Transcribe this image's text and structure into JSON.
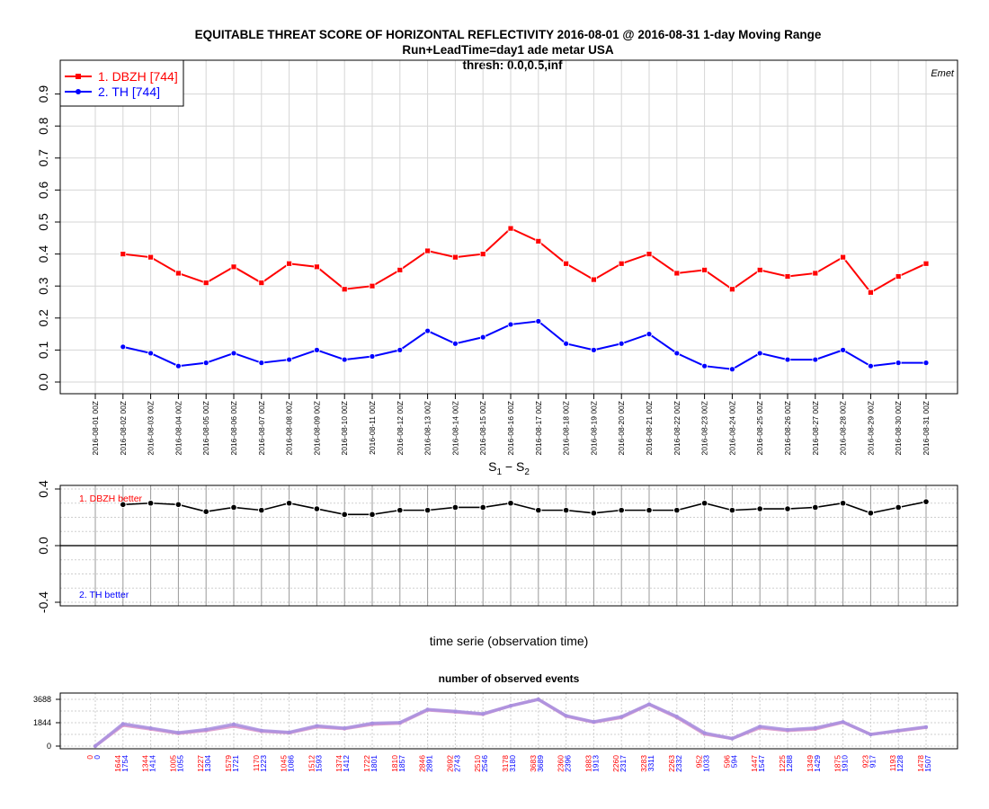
{
  "title": {
    "line1": "EQUITABLE THREAT SCORE OF HORIZONTAL REFLECTIVITY 2016-08-01 @ 2016-08-31 1-day Moving Range",
    "line2": "Run+LeadTime=day1 ade metar USA",
    "line3": "thresh: 0.0,0.5,inf",
    "corner": "Emet"
  },
  "colors": {
    "s1": "#ff0000",
    "s2": "#0000ff",
    "diff": "#000000",
    "events": "#bb88dd"
  },
  "chart_data": [
    {
      "type": "line",
      "x": [
        "2016-08-01 00Z",
        "2016-08-02 00Z",
        "2016-08-03 00Z",
        "2016-08-04 00Z",
        "2016-08-05 00Z",
        "2016-08-06 00Z",
        "2016-08-07 00Z",
        "2016-08-08 00Z",
        "2016-08-09 00Z",
        "2016-08-10 00Z",
        "2016-08-11 00Z",
        "2016-08-12 00Z",
        "2016-08-13 00Z",
        "2016-08-14 00Z",
        "2016-08-15 00Z",
        "2016-08-16 00Z",
        "2016-08-17 00Z",
        "2016-08-18 00Z",
        "2016-08-19 00Z",
        "2016-08-20 00Z",
        "2016-08-21 00Z",
        "2016-08-22 00Z",
        "2016-08-23 00Z",
        "2016-08-24 00Z",
        "2016-08-25 00Z",
        "2016-08-26 00Z",
        "2016-08-27 00Z",
        "2016-08-28 00Z",
        "2016-08-29 00Z",
        "2016-08-30 00Z",
        "2016-08-31 00Z"
      ],
      "series": [
        {
          "name": "1. DBZH [744]",
          "values": [
            null,
            0.4,
            0.39,
            0.34,
            0.31,
            0.36,
            0.31,
            0.37,
            0.36,
            0.29,
            0.3,
            0.35,
            0.41,
            0.39,
            0.4,
            0.48,
            0.44,
            0.37,
            0.32,
            0.37,
            0.4,
            0.34,
            0.35,
            0.29,
            0.35,
            0.33,
            0.34,
            0.39,
            0.28,
            0.33,
            0.37
          ]
        },
        {
          "name": "2. TH [744]",
          "values": [
            null,
            0.11,
            0.09,
            0.05,
            0.06,
            0.09,
            0.06,
            0.07,
            0.1,
            0.07,
            0.08,
            0.1,
            0.16,
            0.12,
            0.14,
            0.18,
            0.19,
            0.12,
            0.1,
            0.12,
            0.15,
            0.09,
            0.05,
            0.04,
            0.09,
            0.07,
            0.07,
            0.1,
            0.05,
            0.06,
            0.06
          ]
        }
      ],
      "yticks": [
        "0.0",
        "0.1",
        "0.2",
        "0.3",
        "0.4",
        "0.5",
        "0.6",
        "0.7",
        "0.8",
        "0.9"
      ],
      "ylim": [
        -0.02,
        1.0
      ],
      "legend": "top-left",
      "grid": true
    },
    {
      "type": "line",
      "title": "S1 - S2",
      "xlabel": "time serie (observation time)",
      "values": [
        null,
        0.29,
        0.3,
        0.29,
        0.24,
        0.27,
        0.25,
        0.3,
        0.26,
        0.22,
        0.22,
        0.25,
        0.25,
        0.27,
        0.27,
        0.3,
        0.25,
        0.25,
        0.23,
        0.25,
        0.25,
        0.25,
        0.3,
        0.25,
        0.26,
        0.26,
        0.27,
        0.3,
        0.23,
        0.27,
        0.31
      ],
      "yticks": [
        "-0.4",
        "0.0",
        "0.4"
      ],
      "ylim": [
        -0.45,
        0.45
      ],
      "annotations": [
        "1. DBZH  better",
        "2. TH  better"
      ],
      "grid": true
    },
    {
      "type": "line",
      "title": "number of observed events",
      "series": [
        {
          "name": "1. DBZH",
          "values": [
            0,
            1644,
            1344,
            1005,
            1227,
            1579,
            1170,
            1045,
            1512,
            1374,
            1722,
            1810,
            2846,
            2692,
            2510,
            3178,
            3683,
            2360,
            1883,
            2260,
            3283,
            2263,
            952,
            596,
            1447,
            1225,
            1349,
            1875,
            923,
            1193,
            1478
          ]
        },
        {
          "name": "2. TH",
          "values": [
            0,
            1754,
            1414,
            1055,
            1304,
            1721,
            1223,
            1086,
            1593,
            1412,
            1801,
            1857,
            2891,
            2743,
            2546,
            3180,
            3689,
            2396,
            1913,
            2317,
            3311,
            2332,
            1033,
            594,
            1547,
            1288,
            1429,
            1910,
            917,
            1228,
            1507
          ]
        }
      ],
      "yticks": [
        "0",
        "1844",
        "3688"
      ],
      "ylim": [
        -80,
        3780
      ],
      "grid": true
    }
  ]
}
